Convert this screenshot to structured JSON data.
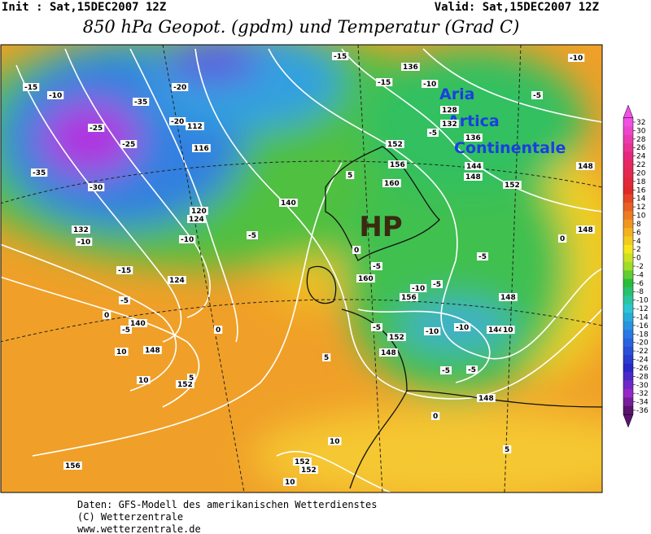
{
  "header": {
    "init": "Init : Sat,15DEC2007 12Z",
    "valid": "Valid: Sat,15DEC2007 12Z",
    "title": "850 hPa Geopot. (gpdm) und Temperatur (Grad C)"
  },
  "annotations": {
    "aria": [
      "Aria",
      "Artica",
      "Continentale"
    ],
    "hp": "HP"
  },
  "contour_labels": [
    "-15",
    "-10",
    "-35",
    "-25",
    "-25",
    "-35",
    "-30",
    "132",
    "-10",
    "-15",
    "-5",
    "0",
    "-5",
    "10",
    "148",
    "10",
    "152",
    "5",
    "156",
    "124",
    "0",
    "-10",
    "-5",
    "140",
    "112",
    "116",
    "120",
    "124",
    "-20",
    "-20",
    "-15",
    "-15",
    "-10",
    "136",
    "-10",
    "-5",
    "128",
    "132",
    "136",
    "-5",
    "144",
    "148",
    "152",
    "148",
    "148",
    "0",
    "152",
    "156",
    "160",
    "5",
    "0",
    "-5",
    "160",
    "-10",
    "156",
    "-5",
    "-5",
    "148",
    "-10",
    "-10",
    "144",
    "10",
    "-5",
    "152",
    "148",
    "5",
    "-5",
    "-5",
    "148",
    "0",
    "5",
    "10",
    "152",
    "152",
    "10",
    "140"
  ],
  "colorbar": {
    "ticks": [
      32,
      30,
      28,
      26,
      24,
      22,
      20,
      18,
      16,
      14,
      12,
      10,
      8,
      6,
      4,
      2,
      0,
      -2,
      -4,
      -6,
      -8,
      -10,
      -12,
      -14,
      -16,
      -18,
      -20,
      -22,
      -24,
      -26,
      -28,
      -30,
      -32,
      -34,
      -36
    ]
  },
  "footer": [
    "Daten: GFS-Modell des amerikanischen Wetterdienstes",
    "(C) Wetterzentrale",
    "www.wetterzentrale.de"
  ]
}
